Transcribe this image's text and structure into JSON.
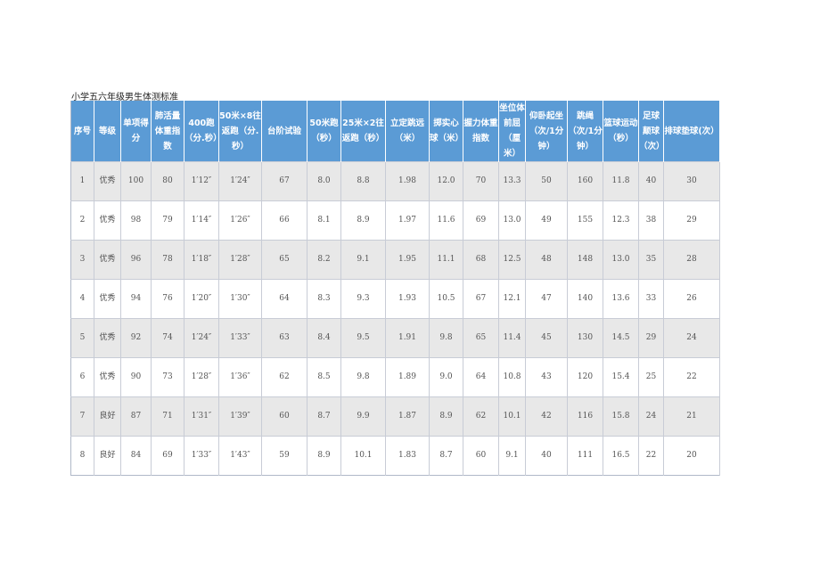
{
  "title": "小学五六年级男生体测标准",
  "headers": [
    "序号",
    "等级",
    "单项得分",
    "肺活量体重指数",
    "400跑（分.秒）",
    "50米×8往返跑（分. 秒）",
    "台阶试验",
    "50米跑（秒）",
    "25米×2往返跑（秒）",
    "立定跳远（米）",
    "掷实心球（米）",
    "握力体重指数",
    "坐位体前屈（厘米）",
    "仰卧起坐（次/1分钟）",
    "跳绳（次/1分钟）",
    "篮球运动（秒）",
    "足球颠球（次）",
    "排球垫球(次）"
  ],
  "rows": [
    [
      "1",
      "优秀",
      "100",
      "80",
      "1′12″",
      "1′24″",
      "67",
      "8.0",
      "8.8",
      "1.98",
      "12.0",
      "70",
      "13.3",
      "50",
      "160",
      "11.8",
      "40",
      "30"
    ],
    [
      "2",
      "优秀",
      "98",
      "79",
      "1′14″",
      "1′26″",
      "66",
      "8.1",
      "8.9",
      "1.97",
      "11.6",
      "69",
      "13.0",
      "49",
      "155",
      "12.3",
      "38",
      "29"
    ],
    [
      "3",
      "优秀",
      "96",
      "78",
      "1′18″",
      "1′28″",
      "65",
      "8.2",
      "9.1",
      "1.95",
      "11.1",
      "68",
      "12.5",
      "48",
      "148",
      "13.0",
      "35",
      "28"
    ],
    [
      "4",
      "优秀",
      "94",
      "76",
      "1′20″",
      "1′30″",
      "64",
      "8.3",
      "9.3",
      "1.93",
      "10.5",
      "67",
      "12.1",
      "47",
      "140",
      "13.6",
      "33",
      "26"
    ],
    [
      "5",
      "优秀",
      "92",
      "74",
      "1′24″",
      "1′33″",
      "63",
      "8.4",
      "9.5",
      "1.91",
      "9.8",
      "65",
      "11.4",
      "45",
      "130",
      "14.5",
      "29",
      "24"
    ],
    [
      "6",
      "优秀",
      "90",
      "73",
      "1′28″",
      "1′36″",
      "62",
      "8.5",
      "9.8",
      "1.89",
      "9.0",
      "64",
      "10.8",
      "43",
      "120",
      "15.4",
      "25",
      "22"
    ],
    [
      "7",
      "良好",
      "87",
      "71",
      "1′31″",
      "1′39″",
      "60",
      "8.7",
      "9.9",
      "1.87",
      "8.9",
      "62",
      "10.1",
      "42",
      "116",
      "15.8",
      "24",
      "21"
    ],
    [
      "8",
      "良好",
      "84",
      "69",
      "1′33″",
      "1′43″",
      "59",
      "8.9",
      "10.1",
      "1.83",
      "8.7",
      "60",
      "9.1",
      "40",
      "111",
      "16.5",
      "22",
      "20"
    ]
  ]
}
